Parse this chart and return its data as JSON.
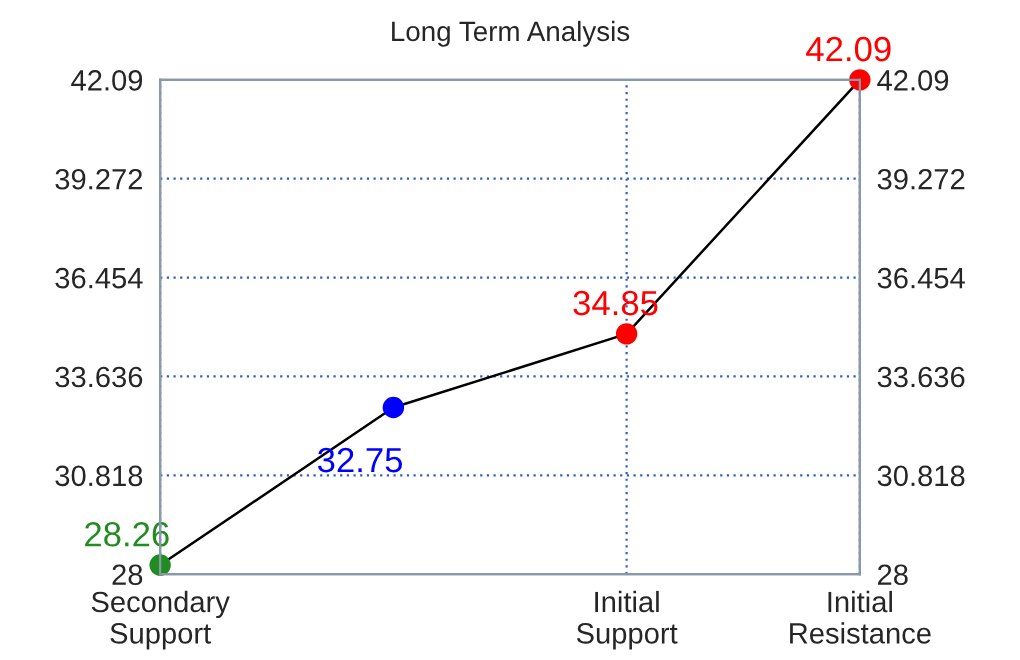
{
  "chart_data": {
    "type": "line",
    "title": "Long Term Analysis",
    "categories": [
      "Secondary\nSupport",
      null,
      "Initial\nSupport",
      "Initial\nResistance"
    ],
    "ylim": [
      28,
      42.09
    ],
    "yticks": [
      28,
      30.818,
      33.636,
      36.454,
      39.272,
      42.09
    ],
    "y2lim": [
      28,
      42.09
    ],
    "y2ticks": [
      28,
      30.818,
      33.636,
      36.454,
      39.272,
      42.09
    ],
    "grid": true,
    "series": [
      {
        "color": "#000000",
        "colors": [
          "#228b22",
          "#0000ff",
          "#ff0000",
          "#ff0000"
        ],
        "values": [
          28.26,
          32.75,
          34.85,
          42.09
        ],
        "marker": "circle"
      }
    ],
    "data_labels": true
  }
}
